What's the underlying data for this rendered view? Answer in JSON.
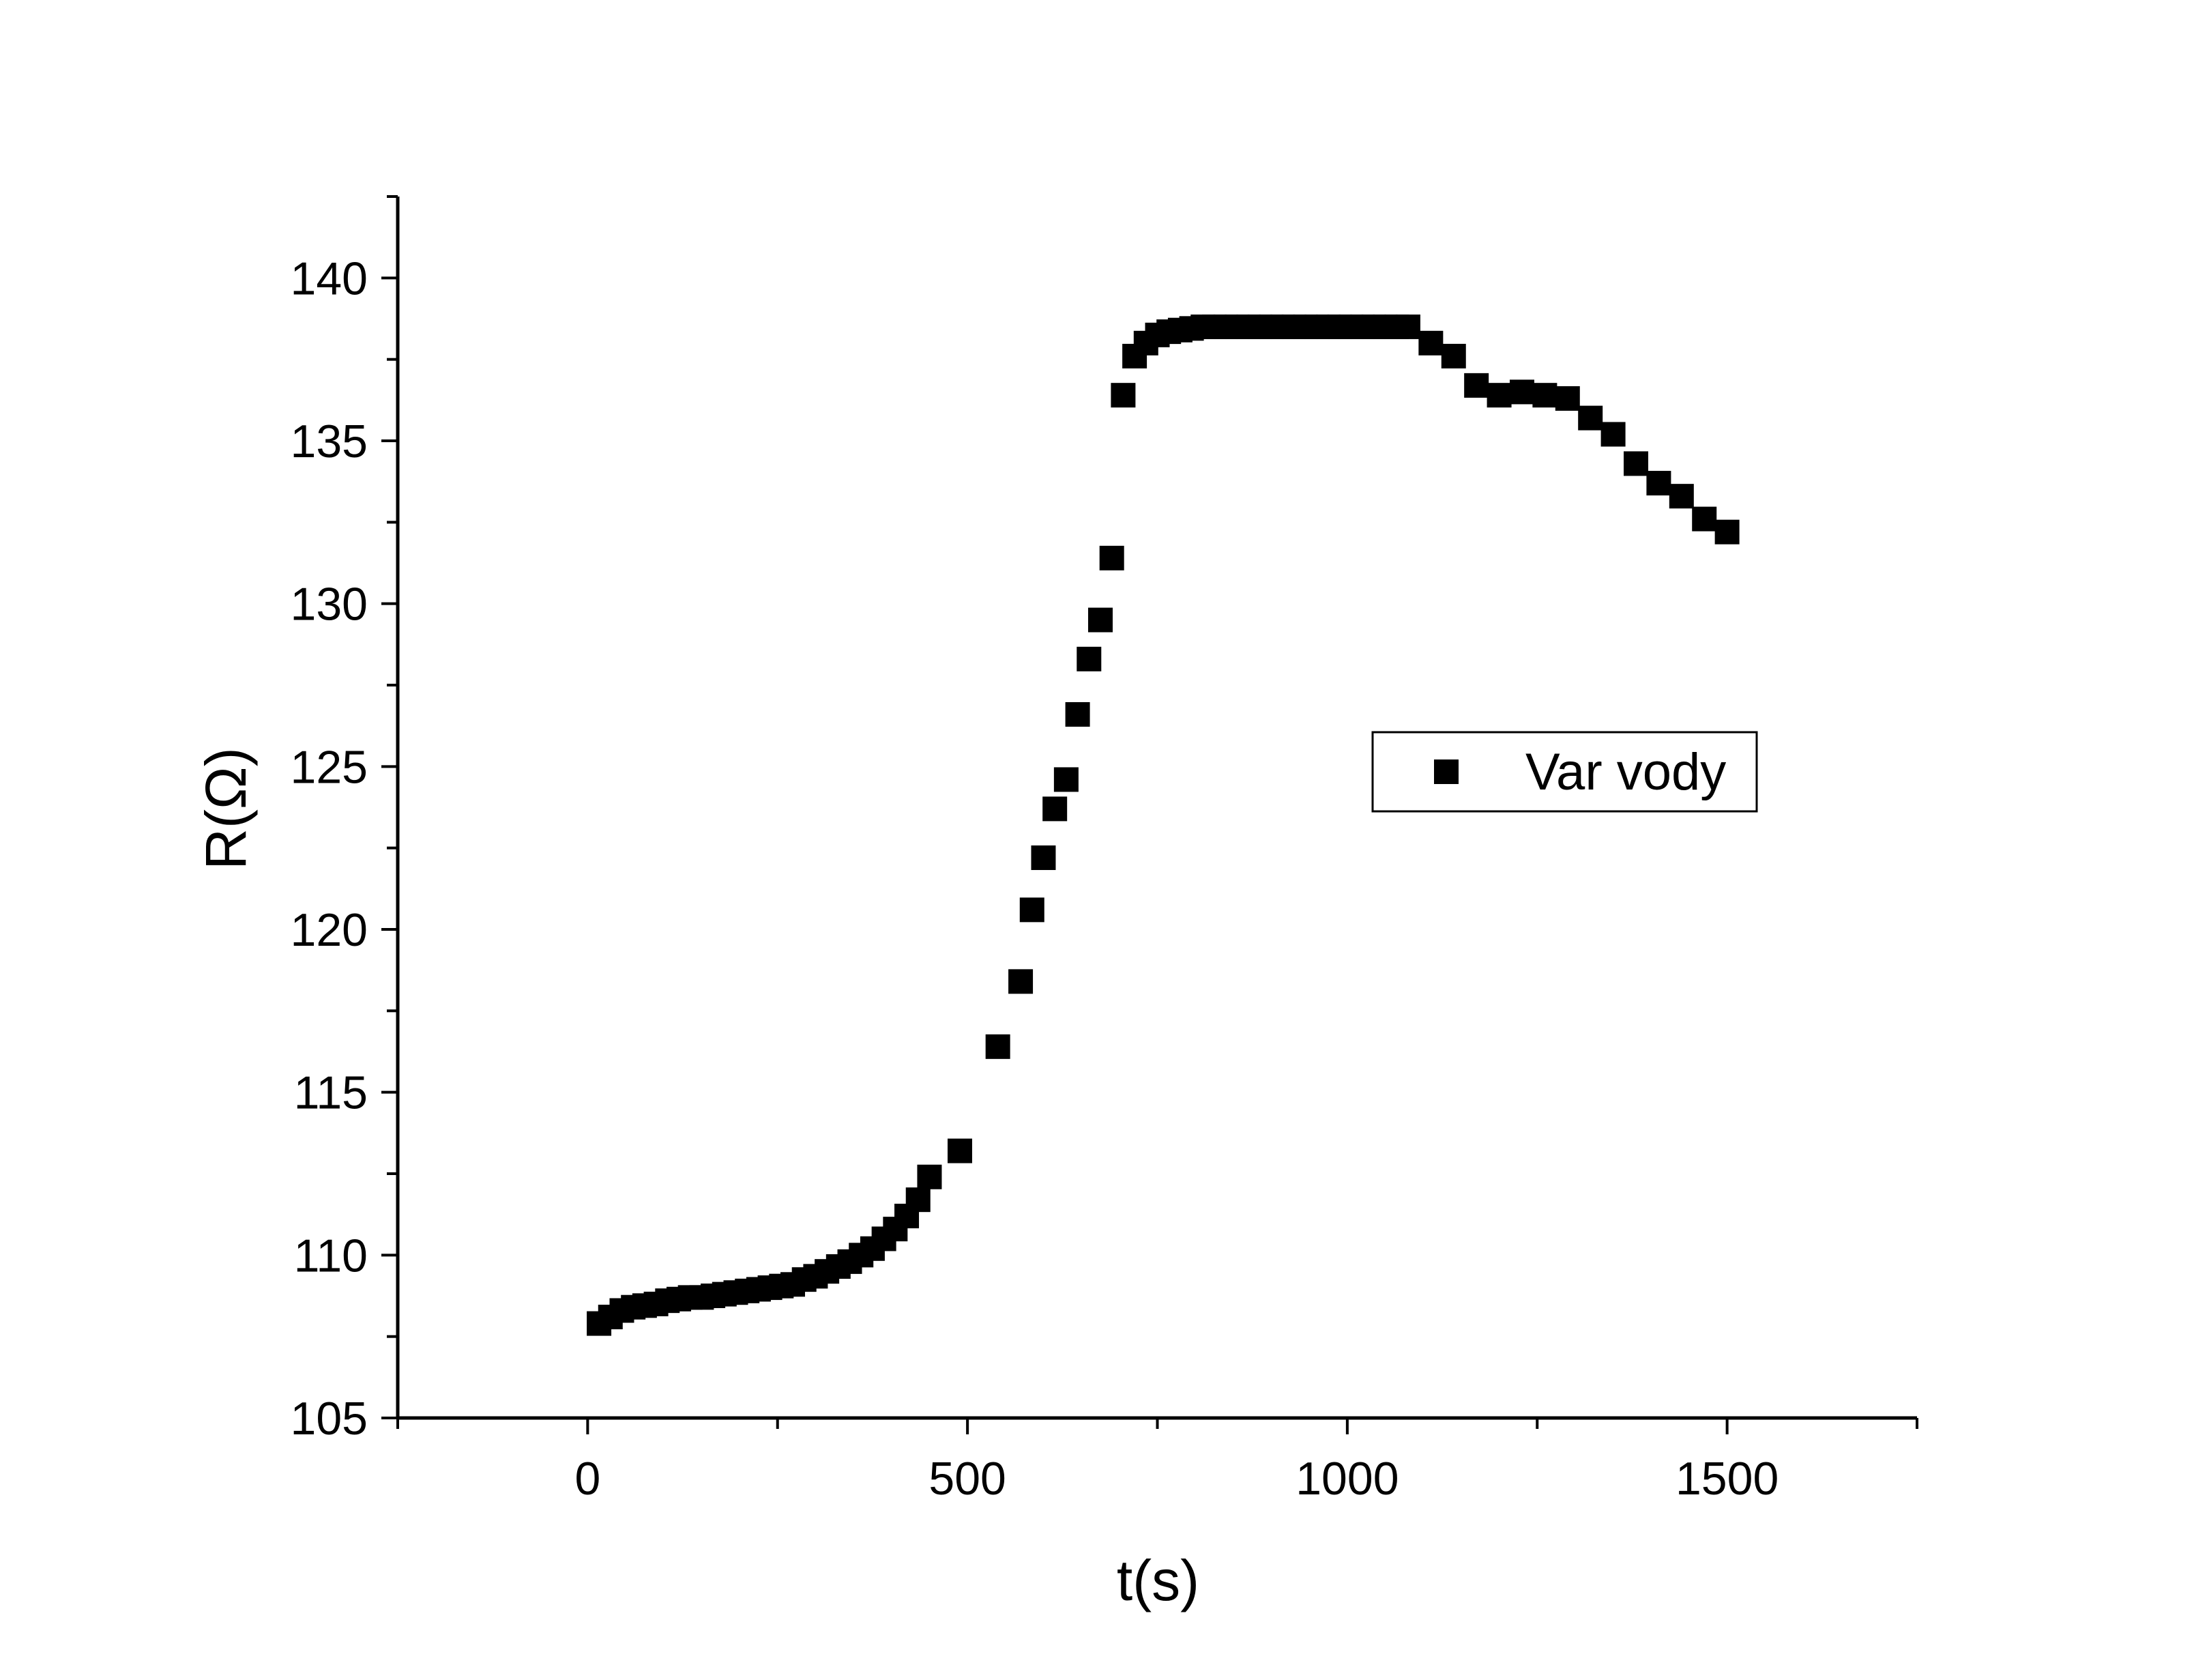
{
  "chart_data": {
    "type": "scatter",
    "xlabel": "t(s)",
    "ylabel": "R(Ω)",
    "xlim": [
      -250,
      1750
    ],
    "ylim": [
      105,
      142.5
    ],
    "x_ticks": [
      0,
      500,
      1000,
      1500
    ],
    "y_ticks": [
      105,
      110,
      115,
      120,
      125,
      130,
      135,
      140
    ],
    "x_minor_step": 250,
    "y_minor_step": 2.5,
    "legend_position": "center-right",
    "marker": "square",
    "color": "#000000",
    "grid": false,
    "series": [
      {
        "name": "Var vody",
        "points": [
          [
            15,
            107.9
          ],
          [
            30,
            108.1
          ],
          [
            45,
            108.3
          ],
          [
            60,
            108.4
          ],
          [
            75,
            108.45
          ],
          [
            90,
            108.5
          ],
          [
            105,
            108.6
          ],
          [
            120,
            108.65
          ],
          [
            135,
            108.7
          ],
          [
            150,
            108.7
          ],
          [
            165,
            108.75
          ],
          [
            180,
            108.8
          ],
          [
            195,
            108.85
          ],
          [
            210,
            108.9
          ],
          [
            225,
            108.95
          ],
          [
            240,
            109.0
          ],
          [
            255,
            109.05
          ],
          [
            270,
            109.1
          ],
          [
            285,
            109.25
          ],
          [
            300,
            109.35
          ],
          [
            315,
            109.5
          ],
          [
            330,
            109.65
          ],
          [
            345,
            109.8
          ],
          [
            360,
            110.0
          ],
          [
            375,
            110.2
          ],
          [
            390,
            110.5
          ],
          [
            405,
            110.8
          ],
          [
            420,
            111.2
          ],
          [
            435,
            111.7
          ],
          [
            450,
            112.4
          ],
          [
            490,
            113.2
          ],
          [
            540,
            116.4
          ],
          [
            570,
            118.4
          ],
          [
            585,
            120.6
          ],
          [
            600,
            122.2
          ],
          [
            615,
            123.7
          ],
          [
            630,
            124.6
          ],
          [
            645,
            126.6
          ],
          [
            660,
            128.3
          ],
          [
            675,
            129.5
          ],
          [
            690,
            131.4
          ],
          [
            705,
            136.4
          ],
          [
            720,
            137.6
          ],
          [
            735,
            138.0
          ],
          [
            750,
            138.25
          ],
          [
            765,
            138.35
          ],
          [
            780,
            138.4
          ],
          [
            795,
            138.45
          ],
          [
            810,
            138.5
          ],
          [
            825,
            138.5
          ],
          [
            840,
            138.5
          ],
          [
            855,
            138.5
          ],
          [
            870,
            138.5
          ],
          [
            885,
            138.5
          ],
          [
            900,
            138.5
          ],
          [
            915,
            138.5
          ],
          [
            930,
            138.5
          ],
          [
            945,
            138.5
          ],
          [
            960,
            138.5
          ],
          [
            975,
            138.5
          ],
          [
            990,
            138.5
          ],
          [
            1005,
            138.5
          ],
          [
            1020,
            138.5
          ],
          [
            1035,
            138.5
          ],
          [
            1050,
            138.5
          ],
          [
            1065,
            138.5
          ],
          [
            1080,
            138.5
          ],
          [
            1110,
            138.0
          ],
          [
            1140,
            137.6
          ],
          [
            1170,
            136.7
          ],
          [
            1200,
            136.4
          ],
          [
            1230,
            136.5
          ],
          [
            1260,
            136.4
          ],
          [
            1290,
            136.3
          ],
          [
            1320,
            135.7
          ],
          [
            1350,
            135.2
          ],
          [
            1380,
            134.3
          ],
          [
            1410,
            133.7
          ],
          [
            1440,
            133.3
          ],
          [
            1470,
            132.6
          ],
          [
            1500,
            132.2
          ]
        ]
      }
    ]
  }
}
